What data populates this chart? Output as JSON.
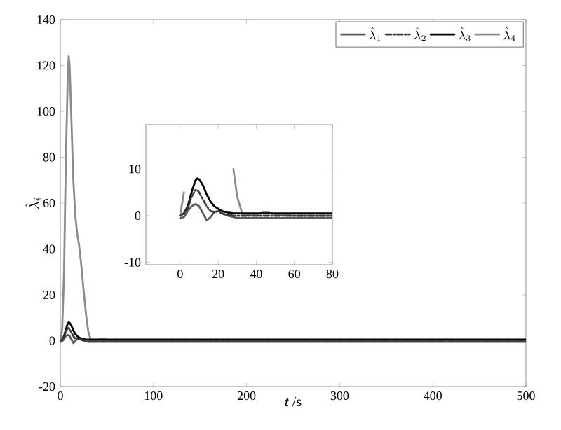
{
  "chart_data": [
    {
      "type": "line",
      "xlabel": "*t* /s",
      "ylabel": "\\hat{\\lambda}_i",
      "xlim": [
        0,
        500
      ],
      "ylim": [
        -20,
        140
      ],
      "xticks": [
        0,
        100,
        200,
        300,
        400,
        500
      ],
      "yticks": [
        -20,
        0,
        20,
        40,
        60,
        80,
        100,
        120,
        140
      ],
      "grid": false,
      "legend": "top right",
      "marker": "none",
      "x": [
        0,
        2,
        4,
        6,
        8,
        9,
        10,
        12,
        14,
        16,
        18,
        20,
        22,
        25,
        28,
        30,
        33,
        40,
        45,
        50,
        60,
        80,
        100,
        200,
        300,
        400,
        500
      ],
      "series": [
        {
          "name": "\\hat{\\lambda}_1",
          "color": "#5a5a5a",
          "line_style": "solid",
          "values": [
            -0.5,
            -0.3,
            1,
            2,
            2.5,
            2.3,
            2,
            0.5,
            -1,
            -0.3,
            0.8,
            1,
            0.5,
            0,
            -0.3,
            -0.5,
            -0.5,
            -0.5,
            -0.5,
            -0.5,
            -0.5,
            -0.5,
            -0.5,
            -0.5,
            -0.5,
            -0.5,
            -0.5
          ]
        },
        {
          "name": "\\hat{\\lambda}_2",
          "color": "#3c3c3c",
          "line_style": "dashdot",
          "values": [
            0,
            0.5,
            1.5,
            4,
            5.5,
            5.5,
            5,
            3.5,
            2,
            1,
            0.8,
            1,
            0.5,
            0.2,
            0,
            0,
            0,
            0,
            0,
            0,
            0,
            0,
            0,
            0,
            0,
            0,
            0
          ]
        },
        {
          "name": "\\hat{\\lambda}_3",
          "color": "#000000",
          "line_style": "solid",
          "values": [
            0,
            0.5,
            2,
            5,
            7.5,
            8,
            7.8,
            6.5,
            4.5,
            3,
            2,
            1.5,
            1,
            0.7,
            0.5,
            0.5,
            0.5,
            0.5,
            0.5,
            0.5,
            0.5,
            0.5,
            0.5,
            0.5,
            0.5,
            0.5,
            0.5
          ]
        },
        {
          "name": "\\hat{\\lambda}_4",
          "color": "#8c8c8c",
          "line_style": "solid",
          "values": [
            0,
            5,
            30,
            80,
            115,
            124,
            120,
            95,
            70,
            55,
            47,
            42,
            35,
            22,
            10,
            4,
            0,
            0.3,
            0.8,
            0.3,
            0,
            0,
            0,
            0,
            0,
            0,
            0
          ]
        }
      ]
    },
    {
      "type": "line",
      "xlim": [
        -18,
        80
      ],
      "ylim": [
        -10.5,
        19.5
      ],
      "xticks": [
        0,
        20,
        40,
        60,
        80
      ],
      "yticks": [
        -10,
        0,
        10
      ],
      "grid": false,
      "legend": false,
      "marker": "none",
      "x": [
        0,
        2,
        4,
        6,
        8,
        9,
        10,
        12,
        14,
        16,
        18,
        20,
        22,
        25,
        28,
        30,
        33,
        40,
        45,
        50,
        60,
        80
      ],
      "series": [
        {
          "color": "#5a5a5a",
          "line_style": "solid",
          "values": [
            -0.5,
            -0.3,
            1,
            2,
            2.5,
            2.3,
            2,
            0.5,
            -1,
            -0.3,
            0.8,
            1,
            0.5,
            0,
            -0.3,
            -0.5,
            -0.5,
            -0.5,
            -0.5,
            -0.5,
            -0.5,
            -0.5
          ]
        },
        {
          "color": "#3c3c3c",
          "line_style": "dashdot",
          "values": [
            0,
            0.5,
            1.5,
            4,
            5.5,
            5.5,
            5,
            3.5,
            2,
            1,
            0.8,
            1,
            0.5,
            0.2,
            0,
            0,
            0,
            0,
            0,
            0,
            0,
            0
          ]
        },
        {
          "color": "#000000",
          "line_style": "solid",
          "values": [
            0,
            0.5,
            2,
            5,
            7.5,
            8,
            7.8,
            6.5,
            4.5,
            3,
            2,
            1.5,
            1,
            0.7,
            0.5,
            0.5,
            0.5,
            0.5,
            0.5,
            0.5,
            0.5,
            0.5
          ]
        },
        {
          "color": "#8c8c8c",
          "line_style": "solid",
          "values": [
            0,
            5,
            null,
            null,
            null,
            null,
            null,
            null,
            null,
            null,
            null,
            null,
            null,
            null,
            10,
            4,
            0,
            0.3,
            0.8,
            0.3,
            0,
            0
          ]
        }
      ]
    }
  ]
}
